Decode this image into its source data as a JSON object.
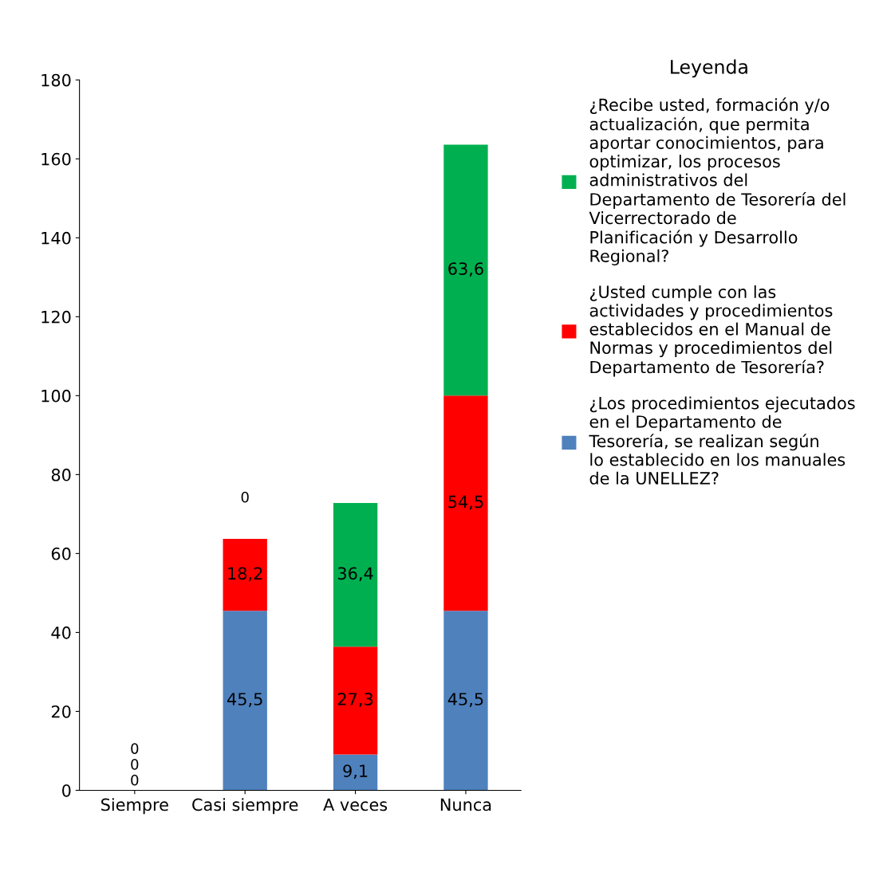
{
  "chart_data": {
    "type": "bar",
    "stacked": true,
    "categories": [
      "Siempre",
      "Casi siempre",
      "A veces",
      "Nunca"
    ],
    "series": [
      {
        "name": "¿Los procedimientos ejecutados en el Departamento de Tesorería, se realizan según lo establecido en los manuales de la UNELLEZ?",
        "color": "#4f81bd",
        "values": [
          0,
          45.5,
          9.1,
          45.5
        ],
        "value_labels": [
          "0",
          "45,5",
          "9,1",
          "45,5"
        ]
      },
      {
        "name": "¿Usted cumple con las actividades y procedimientos establecidos en el Manual de Normas y procedimientos del Departamento de Tesorería?",
        "color": "#ff0000",
        "values": [
          0,
          18.2,
          27.3,
          54.5
        ],
        "value_labels": [
          "0",
          "18,2",
          "27,3",
          "54,5"
        ]
      },
      {
        "name": "¿Recibe usted, formación y/o actualización, que permita aportar conocimientos, para optimizar, los procesos administrativos del Departamento de Tesorería del Vicerrectorado de Planificación y Desarrollo Regional?",
        "color": "#00b050",
        "values": [
          0,
          0,
          36.4,
          63.6
        ],
        "value_labels": [
          "0",
          "0",
          "36,4",
          "63,6"
        ]
      }
    ],
    "legend_title": "Leyenda",
    "legend": "right",
    "ylim": [
      0,
      180
    ],
    "yticks": [
      0,
      20,
      40,
      60,
      80,
      100,
      120,
      140,
      160,
      180
    ],
    "grid": false
  }
}
